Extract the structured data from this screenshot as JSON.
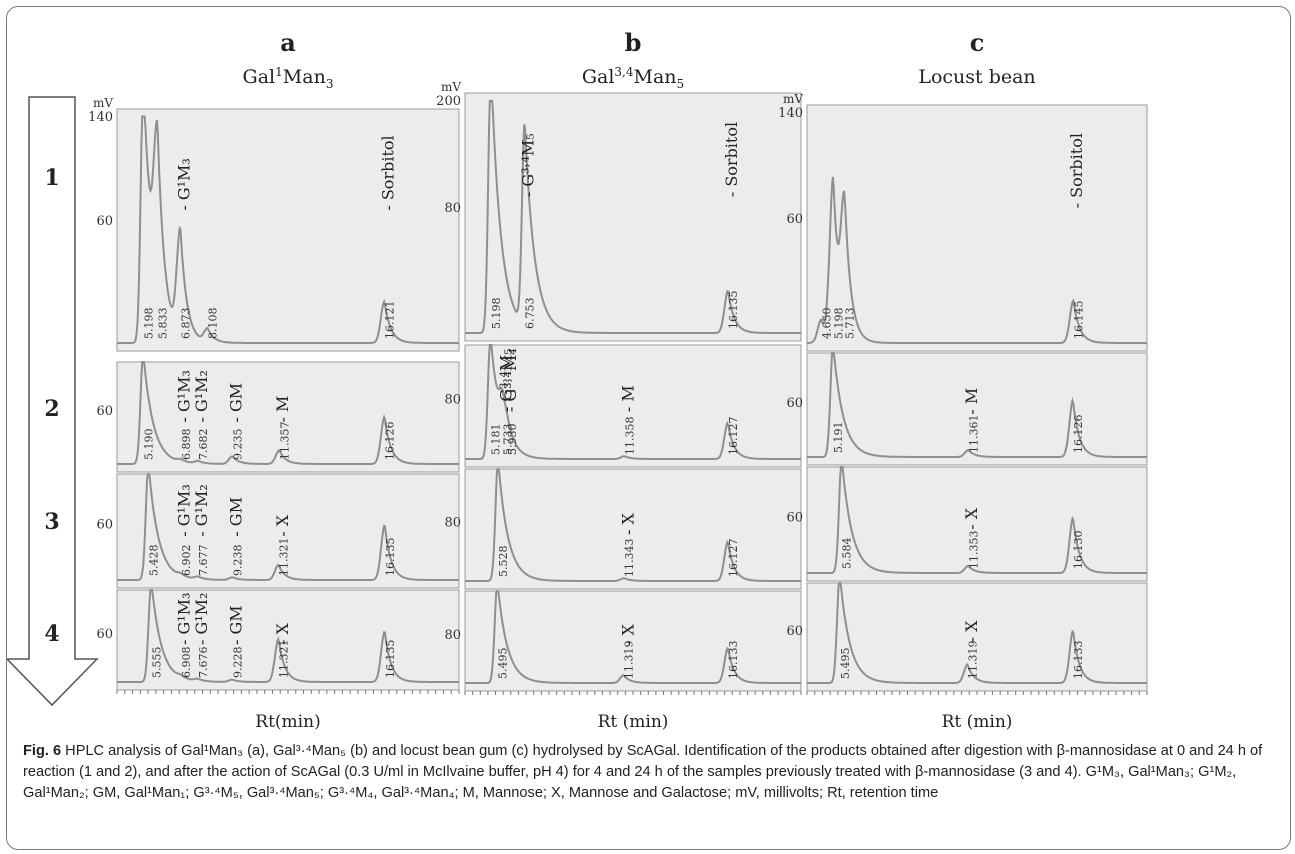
{
  "figure": {
    "panels": [
      {
        "id": "a",
        "letter": "a",
        "title_main": "Gal",
        "title_sup": "1",
        "title_rest": "Man",
        "title_sub": "3",
        "xlabel": "Rt(min)",
        "unit": "mV",
        "rows": [
          {
            "row": "1",
            "ytick": "60",
            "ytop": "140",
            "peaks": [
              {
                "label": "5.198",
                "rt": 5.198,
                "height": 1.4
              },
              {
                "label": "5.833",
                "rt": 5.833,
                "height": 0.83
              },
              {
                "label": "6.873",
                "rt": 6.873,
                "height": 0.56
              },
              {
                "label": "8.108",
                "rt": 8.108,
                "height": 0.07
              },
              {
                "label": "16.121",
                "rt": 16.121,
                "height": 0.22
              }
            ],
            "annotations": [
              "- G¹M₃",
              "- Sorbitol"
            ]
          },
          {
            "row": "2",
            "ytick": "60",
            "peaks": [
              {
                "label": "5.190",
                "rt": 5.19,
                "height": 1.3
              },
              {
                "label": "6.898",
                "rt": 6.898,
                "height": 0.03
              },
              {
                "label": "7.682",
                "rt": 7.682,
                "height": 0.03
              },
              {
                "label": "9.235",
                "rt": 9.235,
                "height": 0.09
              },
              {
                "label": "11.357",
                "rt": 11.357,
                "height": 0.16
              },
              {
                "label": "16.126",
                "rt": 16.126,
                "height": 0.55
              }
            ],
            "annotations": [
              "- G¹M₃",
              "- G¹M₂",
              "- GM",
              "- M"
            ]
          },
          {
            "row": "3",
            "ytick": "60",
            "peaks": [
              {
                "label": "5.428",
                "rt": 5.428,
                "height": 1.3
              },
              {
                "label": "6.902",
                "rt": 6.902,
                "height": 0.03
              },
              {
                "label": "7.677",
                "rt": 7.677,
                "height": 0.03
              },
              {
                "label": "9.238",
                "rt": 9.238,
                "height": 0.03
              },
              {
                "label": "11.321",
                "rt": 11.321,
                "height": 0.17
              },
              {
                "label": "16.135",
                "rt": 16.135,
                "height": 0.62
              }
            ],
            "annotations": [
              "- G¹M₃",
              "- G¹M₂",
              "- GM",
              "- X"
            ]
          },
          {
            "row": "4",
            "ytick": "60",
            "peaks": [
              {
                "label": "5.555",
                "rt": 5.555,
                "height": 1.3
              },
              {
                "label": "6.908",
                "rt": 6.908,
                "height": 0.03
              },
              {
                "label": "7.676",
                "rt": 7.676,
                "height": 0.03
              },
              {
                "label": "9.228",
                "rt": 9.228,
                "height": 0.03
              },
              {
                "label": "11.321",
                "rt": 11.321,
                "height": 0.55
              },
              {
                "label": "16.135",
                "rt": 16.135,
                "height": 0.65
              }
            ],
            "annotations": [
              "- G¹M₃",
              "- G¹M₂",
              "- GM",
              "- X"
            ]
          }
        ]
      },
      {
        "id": "b",
        "letter": "b",
        "title_main": "Gal",
        "title_sup": "3,4",
        "title_rest": "Man",
        "title_sub": "5",
        "xlabel": "Rt (min)",
        "unit": "mV",
        "rows": [
          {
            "row": "1",
            "ytick": "80",
            "ytop": "200",
            "peaks": [
              {
                "label": "5.198",
                "rt": 5.198,
                "height": 1.4
              },
              {
                "label": "6.753",
                "rt": 6.753,
                "height": 1.05
              },
              {
                "label": "16.135",
                "rt": 16.135,
                "height": 0.22
              }
            ],
            "annotations": [
              "- G³˒⁴M₅",
              "- Sorbitol"
            ]
          },
          {
            "row": "2",
            "ytick": "80",
            "peaks": [
              {
                "label": "5.181",
                "rt": 5.181,
                "height": 1.3
              },
              {
                "label": "5.733",
                "rt": 5.733,
                "height": 0.3
              },
              {
                "label": "5.930",
                "rt": 5.93,
                "height": 0.1
              },
              {
                "label": "11.358",
                "rt": 11.358,
                "height": 0.03
              },
              {
                "label": "16.127",
                "rt": 16.127,
                "height": 0.38
              }
            ],
            "annotations": [
              "- G³˒⁴M₅",
              "- G³˒⁴M₄",
              "- M"
            ]
          },
          {
            "row": "3",
            "ytick": "80",
            "peaks": [
              {
                "label": "5.528",
                "rt": 5.528,
                "height": 1.3
              },
              {
                "label": "11.343",
                "rt": 11.343,
                "height": 0.03
              },
              {
                "label": "16.127",
                "rt": 16.127,
                "height": 0.42
              }
            ],
            "annotations": [
              "- X"
            ]
          },
          {
            "row": "4",
            "ytick": "80",
            "peaks": [
              {
                "label": "5.495",
                "rt": 5.495,
                "height": 1.3
              },
              {
                "label": "11.319",
                "rt": 11.319,
                "height": 0.1
              },
              {
                "label": "16.133",
                "rt": 16.133,
                "height": 0.45
              }
            ],
            "annotations": [
              "- X"
            ]
          }
        ]
      },
      {
        "id": "c",
        "letter": "c",
        "title_main": "Locust bean",
        "title_sup": "",
        "title_rest": "",
        "title_sub": "",
        "xlabel": "Rt (min)",
        "unit": "mV",
        "rows": [
          {
            "row": "1",
            "ytick": "60",
            "ytop": "140",
            "peaks": [
              {
                "label": "4.650",
                "rt": 4.65,
                "height": 0.12
              },
              {
                "label": "5.198",
                "rt": 5.198,
                "height": 0.85
              },
              {
                "label": "5.713",
                "rt": 5.713,
                "height": 0.65
              },
              {
                "label": "16.145",
                "rt": 16.145,
                "height": 0.22
              }
            ],
            "annotations": [
              "- Sorbitol"
            ]
          },
          {
            "row": "2",
            "ytick": "60",
            "peaks": [
              {
                "label": "5.191",
                "rt": 5.191,
                "height": 1.3
              },
              {
                "label": "11.361",
                "rt": 11.361,
                "height": 0.08
              },
              {
                "label": "16.126",
                "rt": 16.126,
                "height": 0.65
              }
            ],
            "annotations": [
              "- M"
            ]
          },
          {
            "row": "3",
            "ytick": "60",
            "peaks": [
              {
                "label": "5.584",
                "rt": 5.584,
                "height": 1.3
              },
              {
                "label": "11.353",
                "rt": 11.353,
                "height": 0.08
              },
              {
                "label": "16.130",
                "rt": 16.13,
                "height": 0.62
              }
            ],
            "annotations": [
              "- X"
            ]
          },
          {
            "row": "4",
            "ytick": "60",
            "peaks": [
              {
                "label": "5.495",
                "rt": 5.495,
                "height": 1.3
              },
              {
                "label": "11.319",
                "rt": 11.319,
                "height": 0.22
              },
              {
                "label": "16.133",
                "rt": 16.133,
                "height": 0.62
              }
            ],
            "annotations": [
              "- X"
            ]
          }
        ]
      }
    ],
    "arrow_labels": [
      "1",
      "2",
      "3",
      "4"
    ]
  },
  "caption": {
    "lead": "Fig. 6",
    "text": "HPLC analysis of Gal¹Man₃ (a), Gal³·⁴Man₅ (b) and locust bean gum (c) hydrolysed by ScAGal. Identification of the products obtained after digestion with β-mannosidase at 0 and 24 h of reaction (1 and 2), and after the action of ScAGal (0.3 U/ml in McIlvaine buffer, pH 4) for 4 and 24 h of the samples previously treated with β-mannosidase (3 and 4). G¹M₃, Gal¹Man₃; G¹M₂, Gal¹Man₂; GM, Gal¹Man₁; G³·⁴M₅, Gal³·⁴Man₅; G³·⁴M₄, Gal³·⁴Man₄; M, Mannose; X, Mannose and Galactose; mV, millivolts; Rt, retention time"
  }
}
